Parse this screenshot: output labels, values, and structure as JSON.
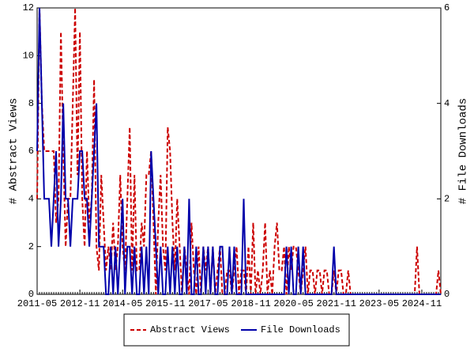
{
  "chart_data": {
    "type": "line",
    "categories": [
      "2011-05",
      null,
      null,
      null,
      null,
      null,
      null,
      null,
      null,
      null,
      null,
      null,
      null,
      null,
      null,
      null,
      null,
      null,
      "2012-11",
      null,
      null,
      null,
      null,
      null,
      null,
      null,
      null,
      null,
      null,
      null,
      null,
      null,
      null,
      null,
      null,
      null,
      "2014-05",
      null,
      null,
      null,
      null,
      null,
      null,
      null,
      null,
      null,
      null,
      null,
      null,
      null,
      null,
      null,
      null,
      null,
      "2015-11",
      null,
      null,
      null,
      null,
      null,
      null,
      null,
      null,
      null,
      null,
      null,
      null,
      null,
      null,
      null,
      null,
      null,
      "2017-05",
      null,
      null,
      null,
      null,
      null,
      null,
      null,
      null,
      null,
      null,
      null,
      null,
      null,
      null,
      null,
      null,
      null,
      "2018-11",
      null,
      null,
      null,
      null,
      null,
      null,
      null,
      null,
      null,
      null,
      null,
      null,
      null,
      null,
      null,
      null,
      null,
      "2020-05",
      null,
      null,
      null,
      null,
      null,
      null,
      null,
      null,
      null,
      null,
      null,
      null,
      null,
      null,
      null,
      null,
      null,
      "2021-11",
      null,
      null,
      null,
      null,
      null,
      null,
      null,
      null,
      null,
      null,
      null,
      null,
      null,
      null,
      null,
      null,
      null,
      "2023-05",
      null,
      null,
      null,
      null,
      null,
      null,
      null,
      null,
      null,
      null,
      null,
      null,
      null,
      null,
      null,
      null,
      null,
      "2024-11",
      null,
      null,
      null,
      null,
      null,
      null,
      null,
      null
    ],
    "series": [
      {
        "name": "Abstract Views",
        "color": "#cc0000",
        "dash": true,
        "values": [
          4,
          12,
          8,
          6,
          6,
          6,
          6,
          6,
          3,
          4,
          11,
          6,
          2,
          4,
          4,
          8,
          12,
          5,
          11,
          4,
          2,
          6,
          3,
          4,
          9,
          2,
          1,
          5,
          3,
          1,
          2,
          1,
          3,
          1,
          2,
          5,
          2,
          1,
          4,
          7,
          1,
          5,
          1,
          1,
          3,
          2,
          5,
          5,
          6,
          3,
          0,
          3,
          5,
          2,
          1,
          7,
          6,
          3,
          1,
          4,
          2,
          0,
          2,
          1,
          0,
          3,
          1,
          0,
          2,
          0,
          2,
          1,
          2,
          0,
          2,
          0,
          1,
          2,
          0,
          0,
          1,
          1,
          0,
          1,
          2,
          0,
          1,
          1,
          0,
          2,
          0,
          3,
          0,
          1,
          0,
          1,
          3,
          0,
          1,
          0,
          2,
          3,
          1,
          1,
          2,
          0,
          2,
          1,
          2,
          2,
          1,
          0,
          1,
          2,
          0,
          1,
          1,
          0,
          1,
          1,
          0,
          1,
          1,
          0,
          0,
          1,
          0,
          1,
          1,
          0,
          0,
          1,
          0,
          0,
          0,
          0,
          0,
          0,
          0,
          0,
          0,
          0,
          0,
          0,
          0,
          0,
          0,
          0,
          0,
          0,
          0,
          0,
          0,
          0,
          0,
          0,
          0,
          0,
          0,
          0,
          2,
          0,
          0,
          0,
          0,
          0,
          0,
          0,
          0,
          1,
          0
        ]
      },
      {
        "name": "File Downloads",
        "color": "#0000aa",
        "dash": false,
        "axis": "y2",
        "values": [
          3,
          6,
          4,
          2,
          2,
          2,
          1,
          2,
          3,
          1,
          2,
          4,
          2,
          2,
          1,
          2,
          2,
          2,
          3,
          3,
          2,
          2,
          1,
          2,
          3,
          4,
          1,
          1,
          1,
          0,
          0,
          1,
          0,
          1,
          0,
          1,
          2,
          0,
          1,
          1,
          0,
          1,
          0,
          0,
          1,
          0,
          1,
          0,
          3,
          2,
          1,
          0,
          1,
          0,
          0,
          1,
          0,
          1,
          0,
          1,
          0,
          0,
          1,
          0,
          2,
          0,
          0,
          1,
          0,
          0,
          1,
          0,
          1,
          0,
          1,
          0,
          0,
          1,
          1,
          0,
          0,
          1,
          0,
          1,
          0,
          0,
          0,
          2,
          0,
          0,
          0,
          0,
          0,
          0,
          0,
          0,
          0,
          0,
          0,
          0,
          0,
          0,
          0,
          0,
          0,
          1,
          0,
          1,
          0,
          0,
          1,
          0,
          1,
          0,
          0,
          0,
          0,
          0,
          0,
          0,
          0,
          0,
          0,
          0,
          0,
          1,
          0,
          0,
          0,
          0,
          0,
          0,
          0,
          0,
          0,
          0,
          0,
          0,
          0,
          0,
          0,
          0,
          0,
          0,
          0,
          0,
          0,
          0,
          0,
          0,
          0,
          0,
          0,
          0,
          0,
          0,
          0,
          0,
          0,
          0,
          0,
          0,
          0,
          0,
          0,
          0,
          0,
          0,
          0,
          0,
          0
        ]
      }
    ],
    "ylabel": "# Abstract Views",
    "y2label": "# File Downloads",
    "ylim": [
      0,
      12
    ],
    "yticks": [
      0,
      2,
      4,
      6,
      8,
      10,
      12
    ],
    "y2lim": [
      0,
      6
    ],
    "y2ticks": [
      0,
      2,
      4,
      6
    ],
    "legend": "bottom"
  }
}
